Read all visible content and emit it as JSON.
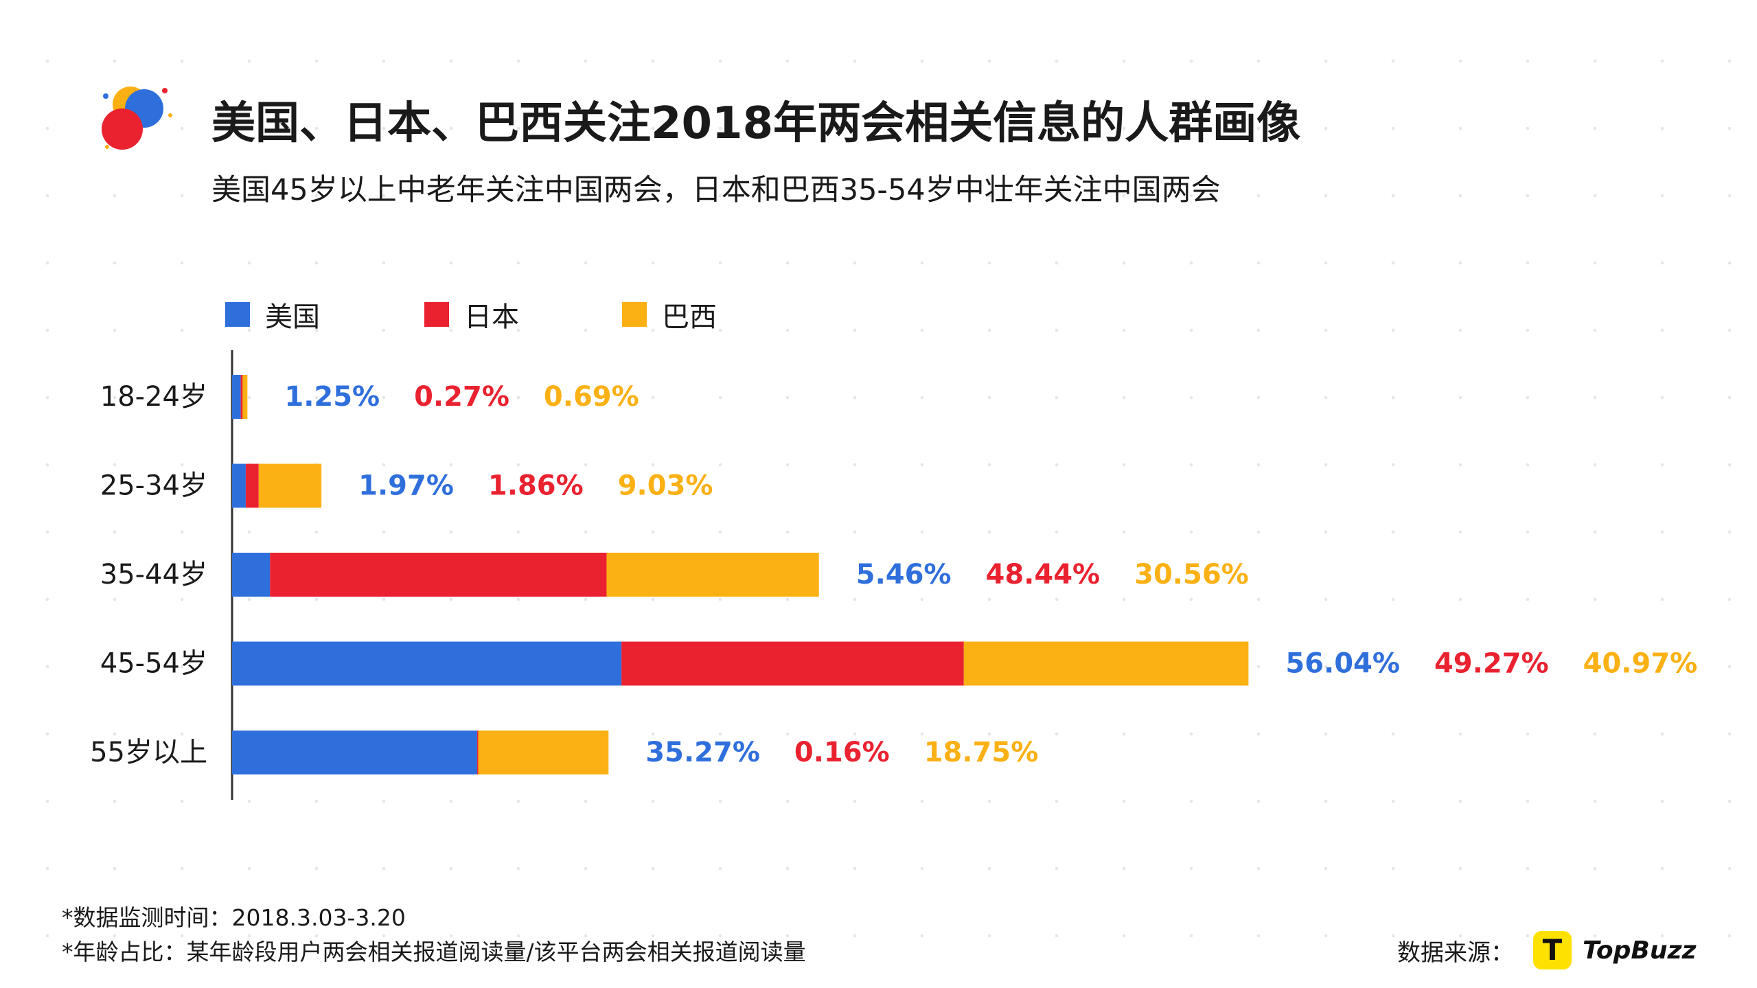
{
  "header": {
    "title": "美国、日本、巴西关注2018年两会相关信息的人群画像",
    "subtitle": "美国45岁以上中老年关注中国两会，日本和巴西35-54岁中壮年关注中国两会"
  },
  "colors": {
    "us": "#2f6fdc",
    "japan": "#ea2230",
    "brazil": "#fbb013",
    "axis": "#333333"
  },
  "chart_data": {
    "type": "bar",
    "orientation": "horizontal",
    "stacked": true,
    "categories": [
      "18-24岁",
      "25-34岁",
      "35-44岁",
      "45-54岁",
      "55岁以上"
    ],
    "series": [
      {
        "name": "美国",
        "values": [
          1.25,
          1.97,
          5.46,
          56.04,
          35.27
        ],
        "labels": [
          "1.25%",
          "1.97%",
          "5.46%",
          "56.04%",
          "35.27%"
        ]
      },
      {
        "name": "日本",
        "values": [
          0.27,
          1.86,
          48.44,
          49.27,
          0.16
        ],
        "labels": [
          "0.27%",
          "1.86%",
          "48.44%",
          "49.27%",
          "0.16%"
        ]
      },
      {
        "name": "巴西",
        "values": [
          0.69,
          9.03,
          30.56,
          40.97,
          18.75
        ],
        "labels": [
          "0.69%",
          "9.03%",
          "30.56%",
          "40.97%",
          "18.75%"
        ]
      }
    ],
    "legend_position": "top-left",
    "grid": false
  },
  "footnotes": {
    "period": "*数据监测时间：2018.3.03-3.20",
    "definition": "*年龄占比：某年龄段用户两会相关报道阅读量/该平台两会相关报道阅读量"
  },
  "source": {
    "label": "数据来源：",
    "brand": "TopBuzz",
    "icon_letter": "T"
  }
}
